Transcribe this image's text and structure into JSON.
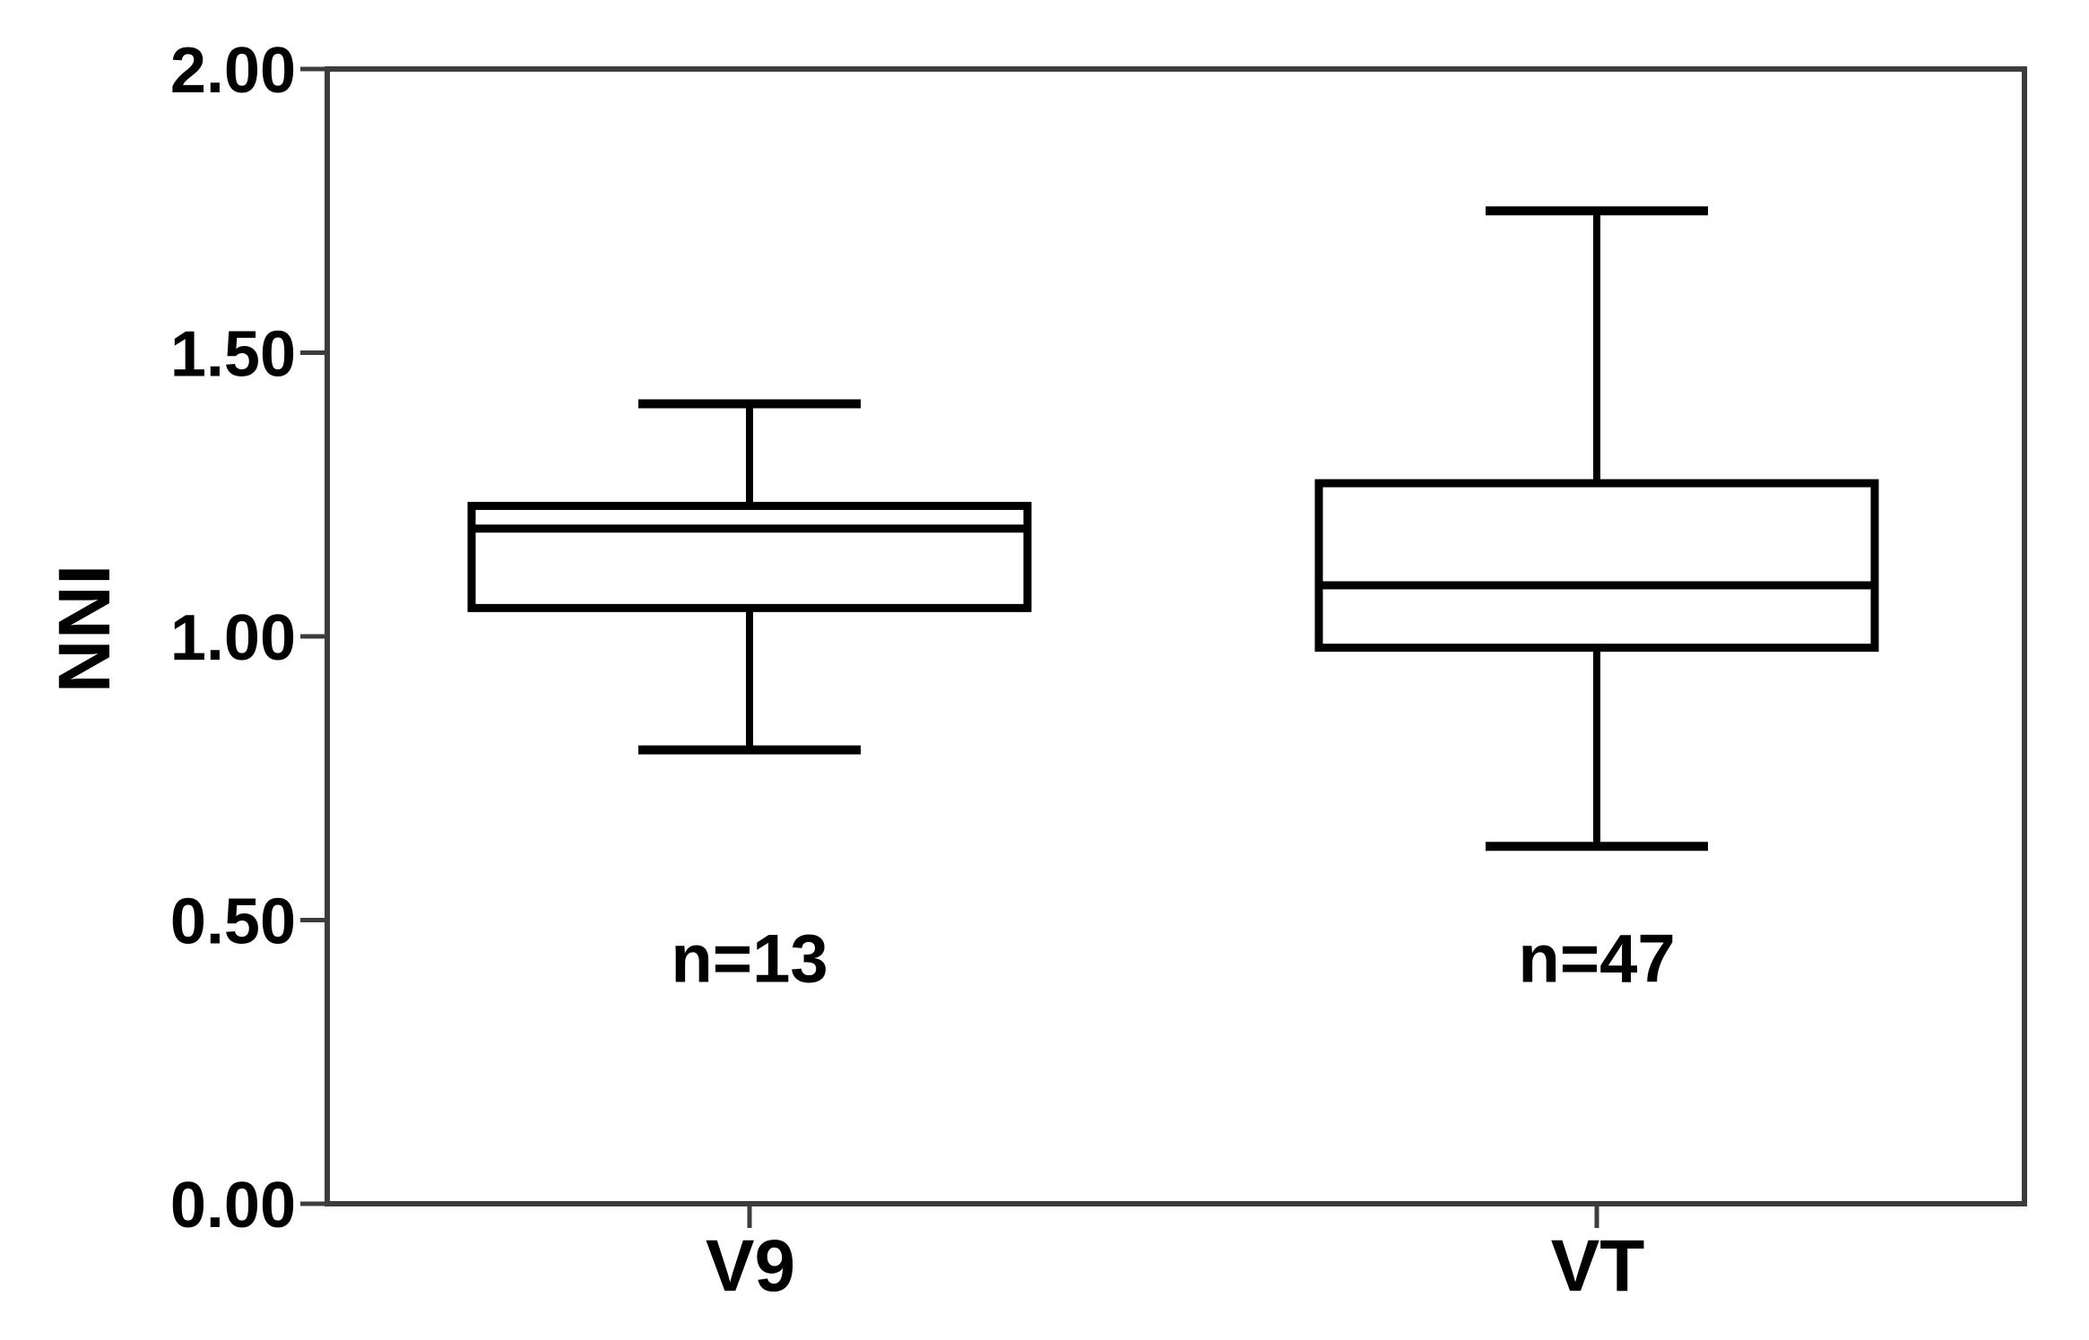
{
  "figure": {
    "background": "#ffffff",
    "frame_color": "#3c3c3c",
    "box_stroke_color": "#000000",
    "text_color": "#000000"
  },
  "chart_data": {
    "type": "boxplot",
    "title": "",
    "ylabel": "NNI",
    "xlabel": "",
    "ylim": [
      0.0,
      2.0
    ],
    "yticks": [
      0.0,
      0.5,
      1.0,
      1.5,
      2.0
    ],
    "ytick_labels": [
      "0.00",
      "0.50",
      "1.00",
      "1.50",
      "2.00"
    ],
    "grid": false,
    "legend": null,
    "categories": [
      "V9",
      "VT"
    ],
    "series": [
      {
        "name": "V9",
        "n": 13,
        "n_label": "n=13",
        "whisker_low": 0.8,
        "q1": 1.05,
        "median": 1.19,
        "q3": 1.23,
        "whisker_high": 1.41
      },
      {
        "name": "VT",
        "n": 47,
        "n_label": "n=47",
        "whisker_low": 0.63,
        "q1": 0.98,
        "median": 1.09,
        "q3": 1.27,
        "whisker_high": 1.75
      }
    ]
  }
}
